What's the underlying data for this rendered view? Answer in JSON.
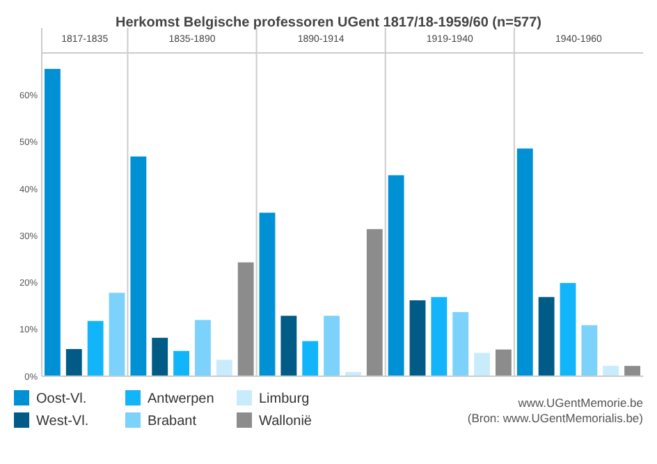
{
  "chart_data": {
    "type": "bar",
    "title": "Herkomst Belgische professoren UGent 1817/18-1959/60 (n=577)",
    "categories": [
      "1817-1835",
      "1835-1890",
      "1890-1914",
      "1919-1940",
      "1940-1960"
    ],
    "series": [
      {
        "name": "Oost-Vl.",
        "color": "#0091d5",
        "values": [
          65.6,
          46.9,
          34.9,
          42.9,
          48.6
        ]
      },
      {
        "name": "West-Vl.",
        "color": "#005b87",
        "values": [
          5.8,
          8.2,
          12.9,
          16.2,
          16.9
        ]
      },
      {
        "name": "Antwerpen",
        "color": "#12b5fa",
        "values": [
          11.8,
          5.4,
          7.5,
          16.9,
          19.9
        ]
      },
      {
        "name": "Brabant",
        "color": "#7dd2fc",
        "values": [
          17.8,
          12.0,
          12.9,
          13.7,
          10.9
        ]
      },
      {
        "name": "Limburg",
        "color": "#c9ecfd",
        "values": [
          null,
          3.5,
          0.9,
          5.0,
          2.2
        ]
      },
      {
        "name": "Wallonië",
        "color": "#8c8c8c",
        "values": [
          null,
          24.3,
          31.4,
          5.7,
          2.2
        ]
      }
    ],
    "ylim": [
      0,
      69
    ],
    "yticks": [
      {
        "value": 0,
        "label": "0%"
      },
      {
        "value": 10,
        "label": "10%"
      },
      {
        "value": 20,
        "label": "20%"
      },
      {
        "value": 30,
        "label": "30%"
      },
      {
        "value": 40,
        "label": "40%"
      },
      {
        "value": 50,
        "label": "50%"
      },
      {
        "value": 60,
        "label": "60%"
      }
    ],
    "legend": "bottom",
    "annotations": [
      "www.UGentMemorie.be",
      "(Bron: www.UGentMemorialis.be)"
    ]
  }
}
